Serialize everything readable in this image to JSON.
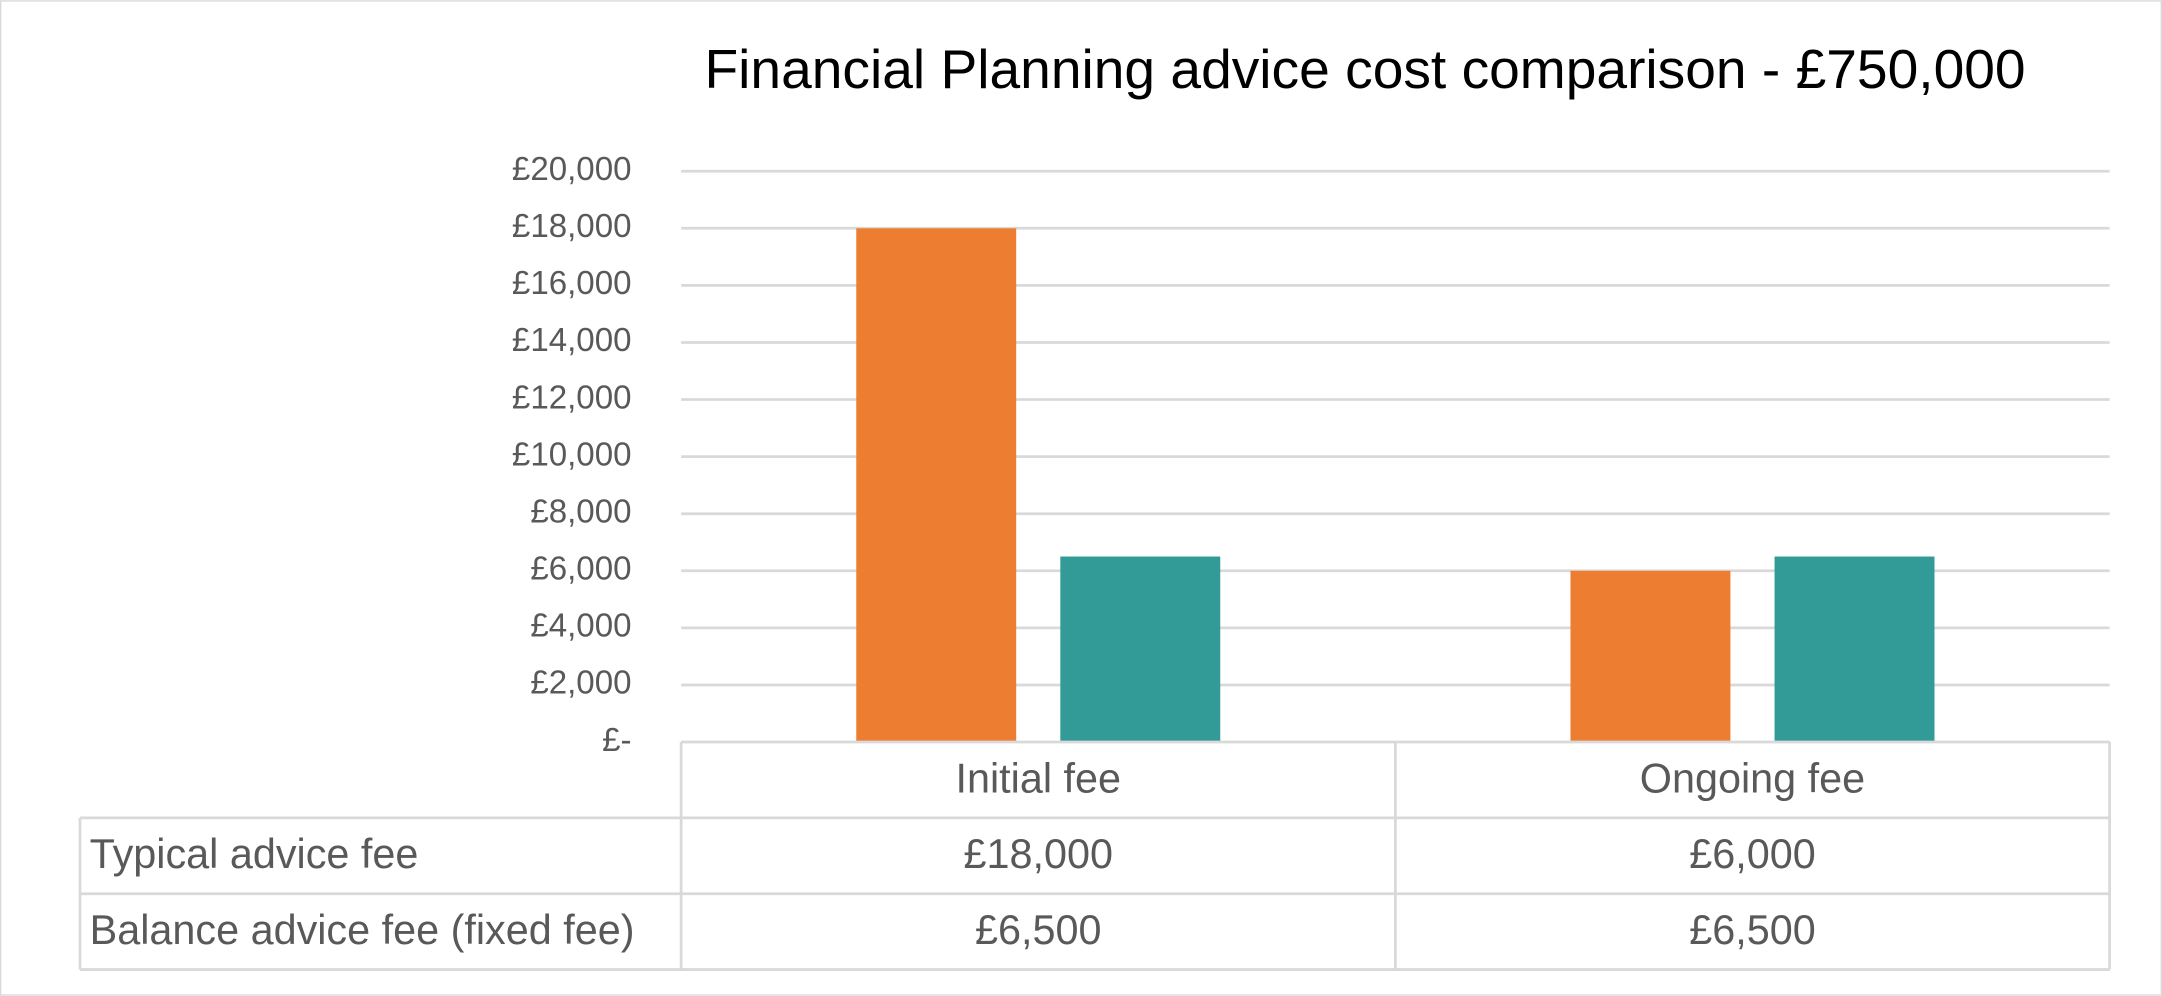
{
  "chart_data": {
    "type": "bar",
    "title": "Financial Planning advice cost comparison - £750,000",
    "categories": [
      "Initial fee",
      "Ongoing fee"
    ],
    "series": [
      {
        "name": "Typical advice fee",
        "color": "#ED7D31",
        "values": [
          18000,
          6000
        ],
        "value_labels": [
          "£18,000",
          "£6,000"
        ]
      },
      {
        "name": "Balance advice fee (fixed fee)",
        "color": "#339B97",
        "values": [
          6500,
          6500
        ],
        "value_labels": [
          "£6,500",
          "£6,500"
        ]
      }
    ],
    "ylim": [
      0,
      20000
    ],
    "yticks": [
      {
        "value": 0,
        "label": "£-"
      },
      {
        "value": 2000,
        "label": "£2,000"
      },
      {
        "value": 4000,
        "label": "£4,000"
      },
      {
        "value": 6000,
        "label": "£6,000"
      },
      {
        "value": 8000,
        "label": "£8,000"
      },
      {
        "value": 10000,
        "label": "£10,000"
      },
      {
        "value": 12000,
        "label": "£12,000"
      },
      {
        "value": 14000,
        "label": "£14,000"
      },
      {
        "value": 16000,
        "label": "£16,000"
      },
      {
        "value": 18000,
        "label": "£18,000"
      },
      {
        "value": 20000,
        "label": "£20,000"
      }
    ],
    "grid": true
  }
}
